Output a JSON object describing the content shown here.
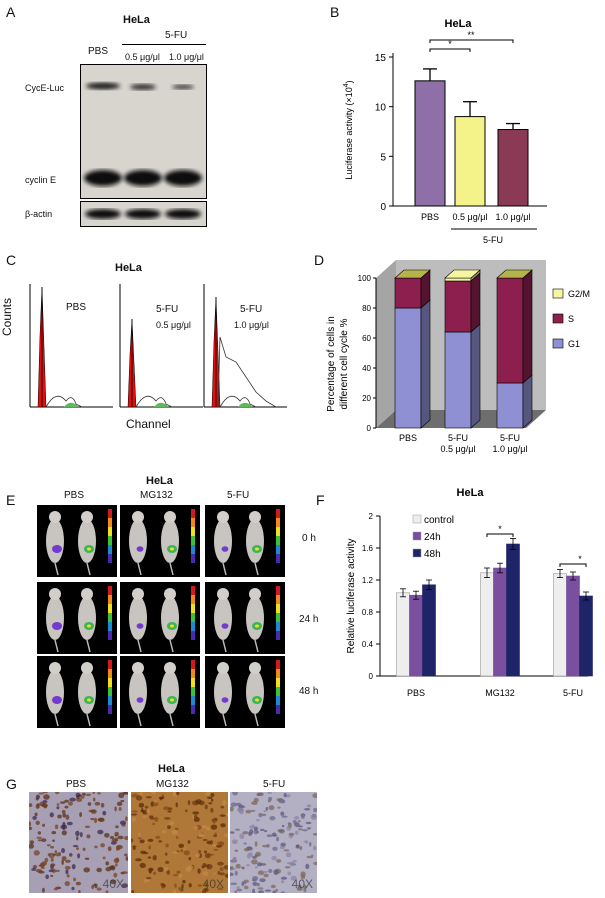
{
  "panelA": {
    "letter": "A",
    "cell_line": "HeLa",
    "group_label": "5-FU",
    "lanes": [
      "PBS",
      "0.5 μg/μl",
      "1.0 μg/μl"
    ],
    "bands": [
      "CycE-Luc",
      "cyclin E",
      "β-actin"
    ]
  },
  "panelB": {
    "letter": "B",
    "chart_data": {
      "type": "bar",
      "title": "HeLa",
      "categories": [
        "PBS",
        "0.5 μg/μl",
        "1.0 μg/μl"
      ],
      "values": [
        12.6,
        9.0,
        7.7
      ],
      "errors": [
        1.2,
        1.5,
        0.6
      ],
      "colors": [
        "#8e6fa8",
        "#f3f38a",
        "#8a3a55"
      ],
      "ylabel": "Luciferase activity  (×10",
      "ylabel_sup": "4",
      "ylabel_close": ")",
      "ylim": [
        0,
        15
      ],
      "yticks": [
        0,
        5,
        10,
        15
      ],
      "group_label": "5-FU",
      "significance": [
        "*",
        "**"
      ]
    }
  },
  "panelC": {
    "letter": "C",
    "cell_line": "HeLa",
    "ylabel": "Counts",
    "xlabel": "Channel",
    "plots": [
      {
        "label": "PBS",
        "sub": ""
      },
      {
        "label": "5-FU",
        "sub": "0.5 μg/μl"
      },
      {
        "label": "5-FU",
        "sub": "1.0 μg/μl"
      }
    ]
  },
  "panelD": {
    "letter": "D",
    "chart_data": {
      "type": "bar",
      "stacked": true,
      "title": "HeLa",
      "categories": [
        "PBS",
        "5-FU\n0.5 μg/μl",
        "5-FU\n1.0 μg/μl"
      ],
      "category_lines": [
        [
          "PBS"
        ],
        [
          "5-FU",
          "0.5 μg/μl"
        ],
        [
          "5-FU",
          "1.0 μg/μl"
        ]
      ],
      "series": [
        {
          "name": "G1",
          "values": [
            80,
            64,
            30
          ],
          "color": "#8f8fd4"
        },
        {
          "name": "S",
          "values": [
            20,
            34,
            70
          ],
          "color": "#8c1f4e"
        },
        {
          "name": "G2/M",
          "values": [
            0,
            2,
            0
          ],
          "color": "#f5f5a2"
        }
      ],
      "ylabel_lines": [
        "Percentage of cells in",
        "different cell cycle  %"
      ],
      "ylim": [
        0,
        100
      ],
      "yticks": [
        0,
        20,
        40,
        60,
        80,
        100
      ],
      "legend": [
        "G2/M",
        "S",
        "G1"
      ]
    }
  },
  "panelE": {
    "letter": "E",
    "cell_line": "HeLa",
    "columns": [
      "PBS",
      "MG132",
      "5-FU"
    ],
    "rows": [
      "0 h",
      "24 h",
      "48 h"
    ]
  },
  "panelF": {
    "letter": "F",
    "chart_data": {
      "type": "bar",
      "title": "HeLa",
      "categories": [
        "PBS",
        "MG132",
        "5-FU"
      ],
      "series": [
        {
          "name": "control",
          "values": [
            1.04,
            1.29,
            1.28
          ],
          "errors": [
            0.05,
            0.06,
            0.05
          ],
          "color": "#eeeeee"
        },
        {
          "name": "24h",
          "values": [
            1.01,
            1.35,
            1.25
          ],
          "errors": [
            0.05,
            0.06,
            0.05
          ],
          "color": "#7b4fa0"
        },
        {
          "name": "48h",
          "values": [
            1.14,
            1.65,
            1.0
          ],
          "errors": [
            0.06,
            0.07,
            0.05
          ],
          "color": "#1e2468"
        }
      ],
      "ylabel": "Relative luciferase  activity",
      "ylim": [
        0,
        2.0
      ],
      "yticks": [
        "0",
        "0.4",
        "0.8",
        "1.2",
        "1.6",
        "2"
      ],
      "significance": [
        "*",
        "*"
      ]
    }
  },
  "panelG": {
    "letter": "G",
    "cell_line": "HeLa",
    "columns": [
      "PBS",
      "MG132",
      "5-FU"
    ],
    "magnification": [
      "40X",
      "40X",
      "40X"
    ]
  }
}
